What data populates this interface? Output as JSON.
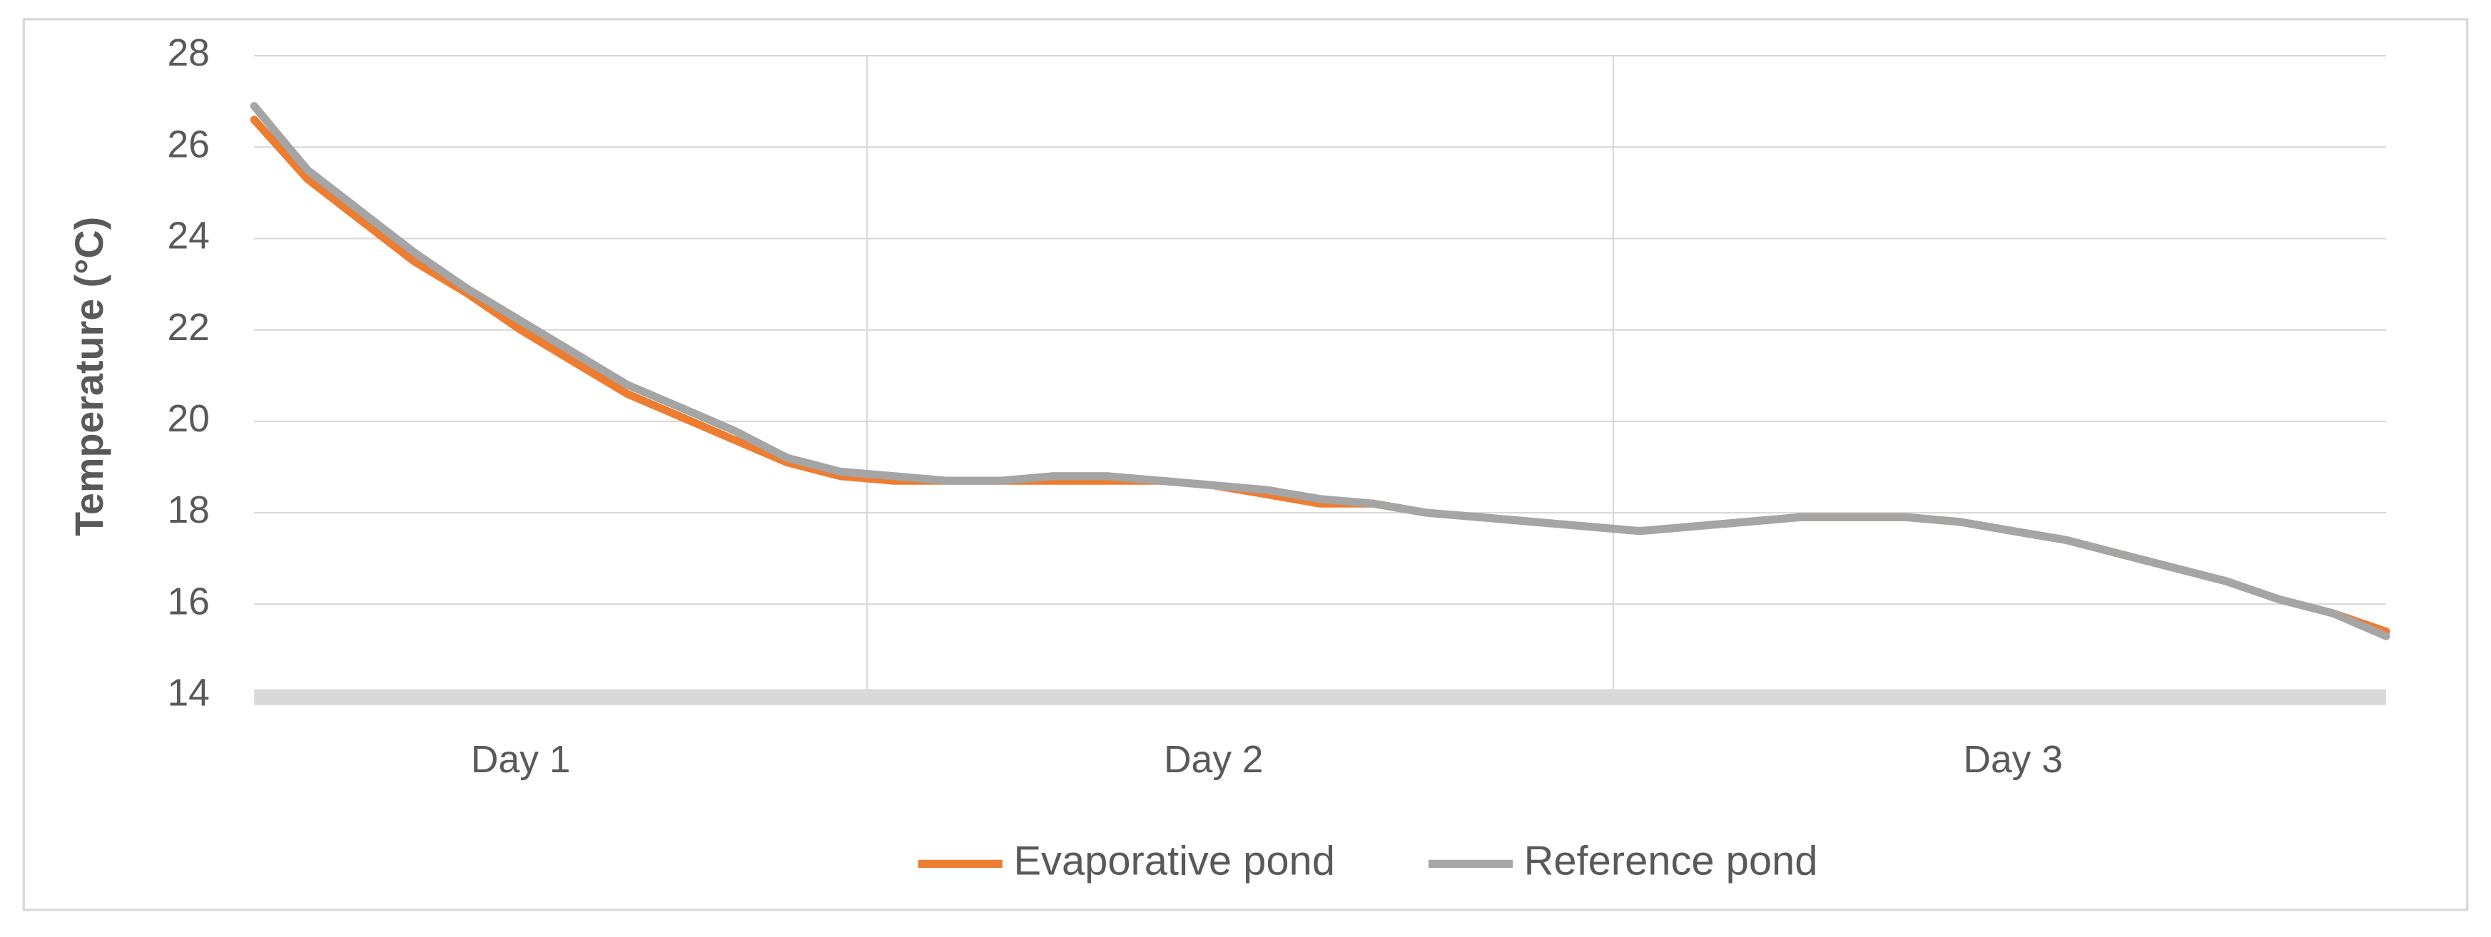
{
  "chart_data": {
    "type": "line",
    "y_label": "Temperature (°C)",
    "categories": [
      null,
      null,
      null,
      null,
      null,
      "Day 1",
      null,
      null,
      null,
      null,
      null,
      null,
      null,
      null,
      null,
      null,
      null,
      null,
      "Day 2",
      null,
      null,
      null,
      null,
      null,
      null,
      null,
      null,
      null,
      null,
      null,
      null,
      null,
      null,
      "Day 3",
      null,
      null,
      null,
      null,
      null,
      null,
      null
    ],
    "series": [
      {
        "name": "Evaporative pond",
        "color": "#ed7d31",
        "values": [
          26.6,
          25.3,
          24.4,
          23.5,
          22.8,
          22.0,
          21.3,
          20.6,
          20.1,
          19.6,
          19.1,
          18.8,
          18.7,
          18.7,
          18.7,
          18.7,
          18.7,
          18.7,
          18.6,
          18.4,
          18.2,
          18.2,
          18.0,
          17.9,
          17.8,
          17.7,
          17.6,
          17.7,
          17.8,
          17.9,
          17.9,
          17.9,
          17.8,
          17.6,
          17.4,
          17.1,
          16.8,
          16.5,
          16.1,
          15.8,
          15.4
        ]
      },
      {
        "name": "Reference pond",
        "color": "#a5a5a5",
        "values": [
          26.9,
          25.5,
          24.6,
          23.7,
          22.9,
          22.2,
          21.5,
          20.8,
          20.3,
          19.8,
          19.2,
          18.9,
          18.8,
          18.7,
          18.7,
          18.8,
          18.8,
          18.7,
          18.6,
          18.5,
          18.3,
          18.2,
          18.0,
          17.9,
          17.8,
          17.7,
          17.6,
          17.7,
          17.8,
          17.9,
          17.9,
          17.9,
          17.8,
          17.6,
          17.4,
          17.1,
          16.8,
          16.5,
          16.1,
          15.8,
          15.3
        ]
      }
    ],
    "ylim": [
      14,
      28
    ],
    "yticks": [
      14,
      16,
      18,
      20,
      22,
      24,
      26,
      28
    ],
    "grid": true,
    "legend": "bottom"
  }
}
